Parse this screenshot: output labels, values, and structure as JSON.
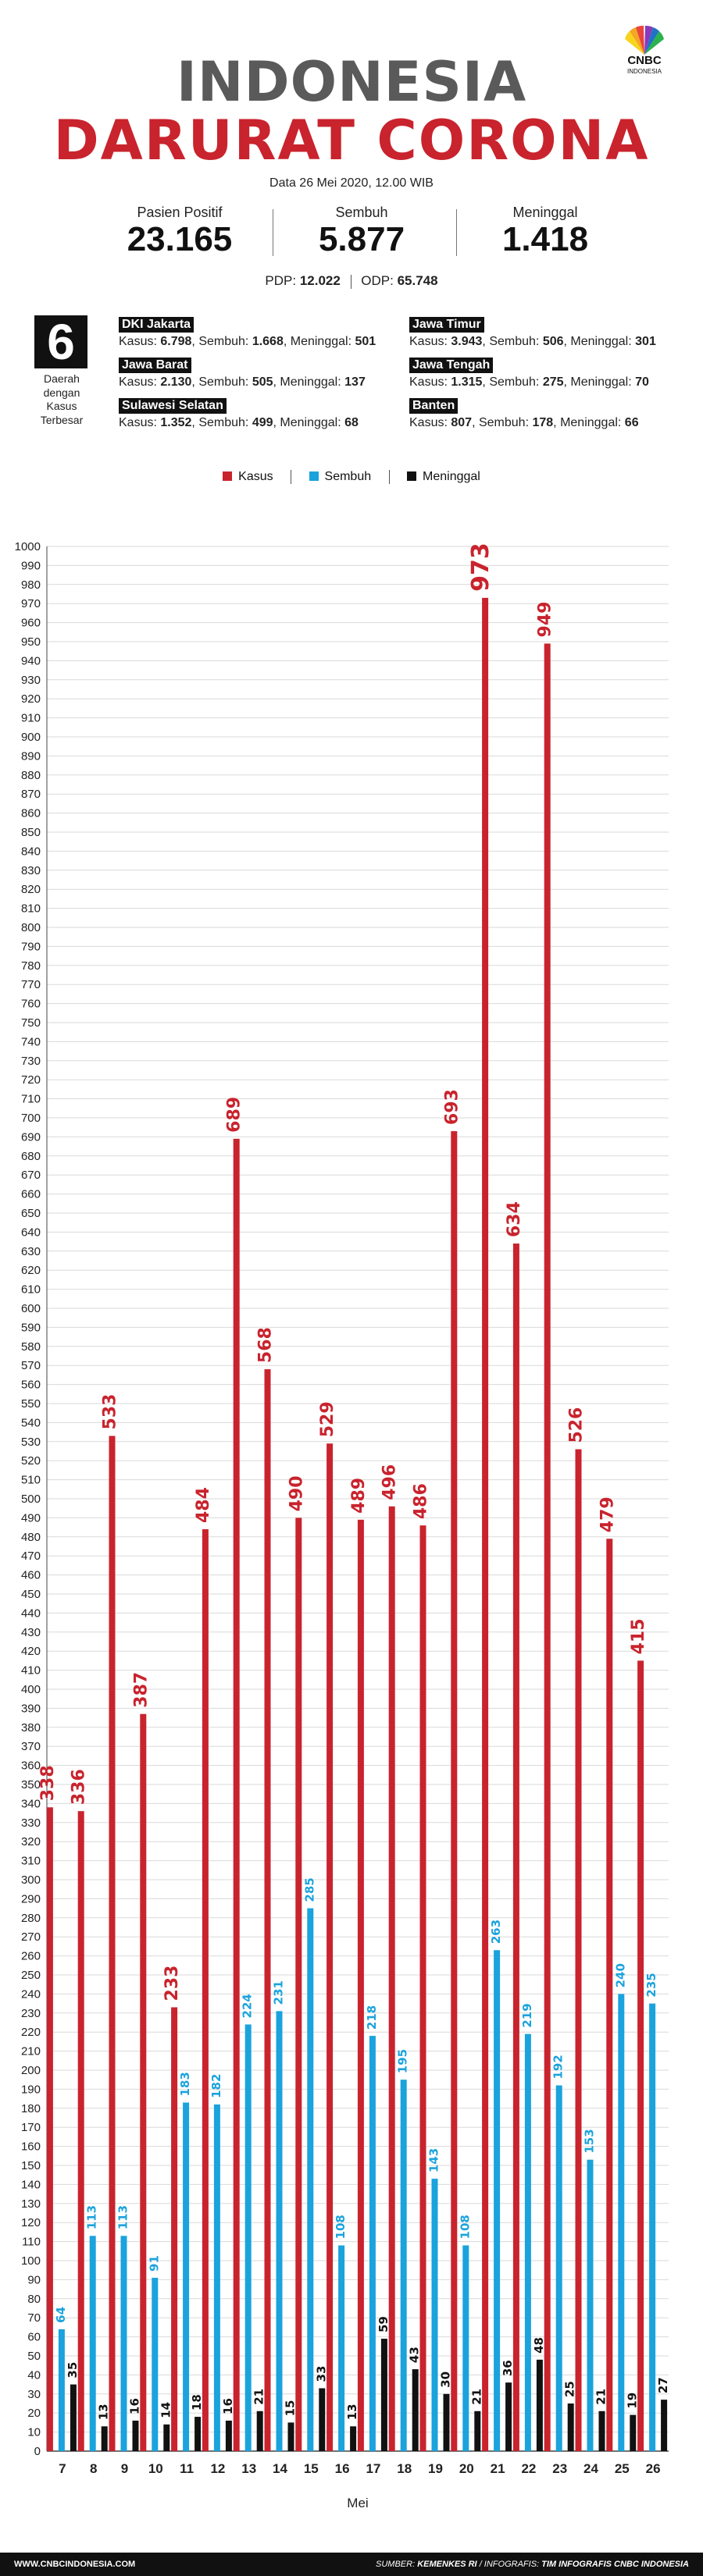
{
  "header": {
    "title_line1": "INDONESIA",
    "title_line2": "DARURAT CORONA",
    "date": "Data 26 Mei 2020, 12.00 WIB",
    "logo_text": "CNBC",
    "logo_sub": "INDONESIA"
  },
  "stats": [
    {
      "label": "Pasien Positif",
      "value": "23.165"
    },
    {
      "label": "Sembuh",
      "value": "5.877"
    },
    {
      "label": "Meninggal",
      "value": "1.418"
    }
  ],
  "pdp": {
    "pdp_label": "PDP:",
    "pdp_value": "12.022",
    "odp_label": "ODP:",
    "odp_value": "65.748"
  },
  "regions_block": {
    "count": "6",
    "caption_lines": [
      "Daerah",
      "dengan",
      "Kasus",
      "Terbesar"
    ],
    "regions": [
      {
        "name": "DKI Jakarta",
        "kasus": "6.798",
        "sembuh": "1.668",
        "meninggal": "501"
      },
      {
        "name": "Jawa Timur",
        "kasus": "3.943",
        "sembuh": "506",
        "meninggal": "301"
      },
      {
        "name": "Jawa Barat",
        "kasus": "2.130",
        "sembuh": "505",
        "meninggal": "137"
      },
      {
        "name": "Jawa Tengah",
        "kasus": "1.315",
        "sembuh": "275",
        "meninggal": "70"
      },
      {
        "name": "Sulawesi Selatan",
        "kasus": "1.352",
        "sembuh": "499",
        "meninggal": "68"
      },
      {
        "name": "Banten",
        "kasus": "807",
        "sembuh": "178",
        "meninggal": "66"
      }
    ],
    "labels": {
      "kasus": "Kasus:",
      "sembuh": "Sembuh:",
      "meninggal": "Meninggal:"
    }
  },
  "colors": {
    "kasus": "#c9232d",
    "sembuh": "#1aa3dd",
    "meninggal": "#111111",
    "title_gray": "#5a5a5a"
  },
  "chart_data": {
    "type": "bar",
    "xlabel": "Mei",
    "ylabel": "",
    "ylim": [
      0,
      1000
    ],
    "y_tick_step": 10,
    "grid": true,
    "legend": "top-center",
    "categories": [
      "7",
      "8",
      "9",
      "10",
      "11",
      "12",
      "13",
      "14",
      "15",
      "16",
      "17",
      "18",
      "19",
      "20",
      "21",
      "22",
      "23",
      "24",
      "25",
      "26"
    ],
    "series": [
      {
        "name": "Kasus",
        "color": "#c9232d",
        "values": [
          338,
          336,
          533,
          387,
          233,
          484,
          689,
          568,
          490,
          529,
          489,
          496,
          486,
          693,
          973,
          634,
          949,
          526,
          479,
          415
        ]
      },
      {
        "name": "Sembuh",
        "color": "#1aa3dd",
        "values": [
          64,
          113,
          113,
          91,
          183,
          182,
          224,
          231,
          285,
          108,
          218,
          195,
          143,
          108,
          263,
          219,
          192,
          153,
          240,
          235
        ]
      },
      {
        "name": "Meninggal",
        "color": "#111111",
        "values": [
          35,
          13,
          16,
          14,
          18,
          16,
          21,
          15,
          33,
          13,
          59,
          43,
          30,
          21,
          36,
          48,
          25,
          21,
          19,
          27
        ]
      }
    ]
  },
  "footer": {
    "site": "WWW.CNBCINDONESIA.COM",
    "source_label": "SUMBER:",
    "source": "KEMENKES RI",
    "infografis_label": "/ INFOGRAFIS:",
    "infografis": "TIM INFOGRAFIS CNBC INDONESIA"
  }
}
